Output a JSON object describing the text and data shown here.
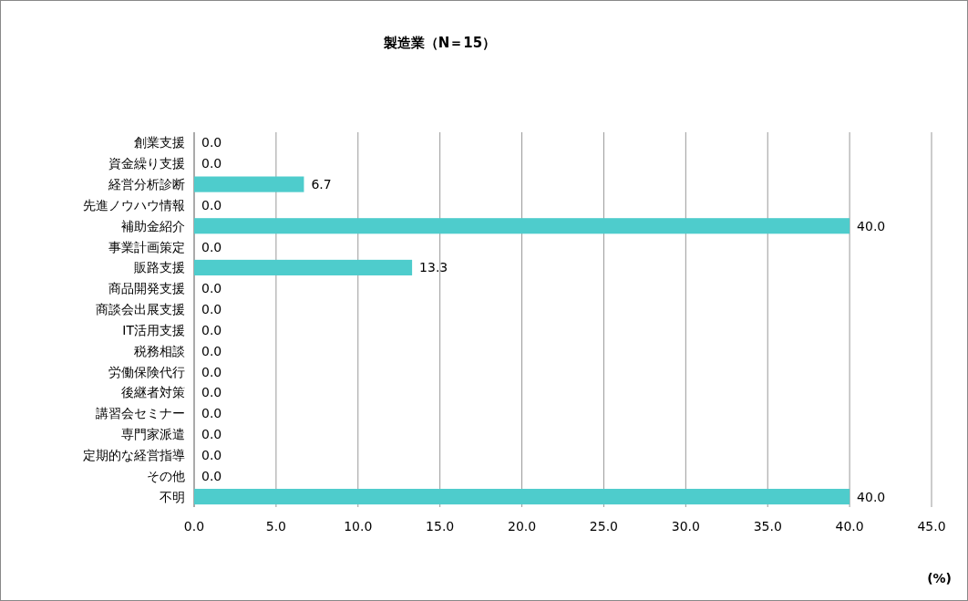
{
  "chart_data": {
    "type": "bar",
    "orientation": "horizontal",
    "title": "製造業（N＝15）",
    "categories": [
      "創業支援",
      "資金繰り支援",
      "経営分析診断",
      "先進ノウハウ情報",
      "補助金紹介",
      "事業計画策定",
      "販路支援",
      "商品開発支援",
      "商談会出展支援",
      "IT活用支援",
      "税務相談",
      "労働保険代行",
      "後継者対策",
      "講習会セミナー",
      "専門家派遣",
      "定期的な経営指導",
      "その他",
      "不明"
    ],
    "values": [
      0,
      0,
      6.7,
      0,
      40,
      0,
      13.3,
      0,
      0,
      0,
      0,
      0,
      0,
      0,
      0,
      0,
      0,
      40
    ],
    "value_labels": [
      "0.0",
      "0.0",
      "6.7",
      "0.0",
      "40.0",
      "0.0",
      "13.3",
      "0.0",
      "0.0",
      "0.0",
      "0.0",
      "0.0",
      "0.0",
      "0.0",
      "0.0",
      "0.0",
      "0.0",
      "40.0"
    ],
    "color": "#4ecccc",
    "xlim": [
      0,
      45
    ],
    "xticks": [
      {
        "value": 0,
        "label": "0.0"
      },
      {
        "value": 5,
        "label": "5.0"
      },
      {
        "value": 10,
        "label": "10.0"
      },
      {
        "value": 15,
        "label": "15.0"
      },
      {
        "value": 20,
        "label": "20.0"
      },
      {
        "value": 25,
        "label": "25.0"
      },
      {
        "value": 30,
        "label": "30.0"
      },
      {
        "value": 35,
        "label": "35.0"
      },
      {
        "value": 40,
        "label": "40.0"
      },
      {
        "value": 45,
        "label": "45.0"
      }
    ],
    "grid": "x",
    "annotations": [
      "(%)"
    ]
  }
}
